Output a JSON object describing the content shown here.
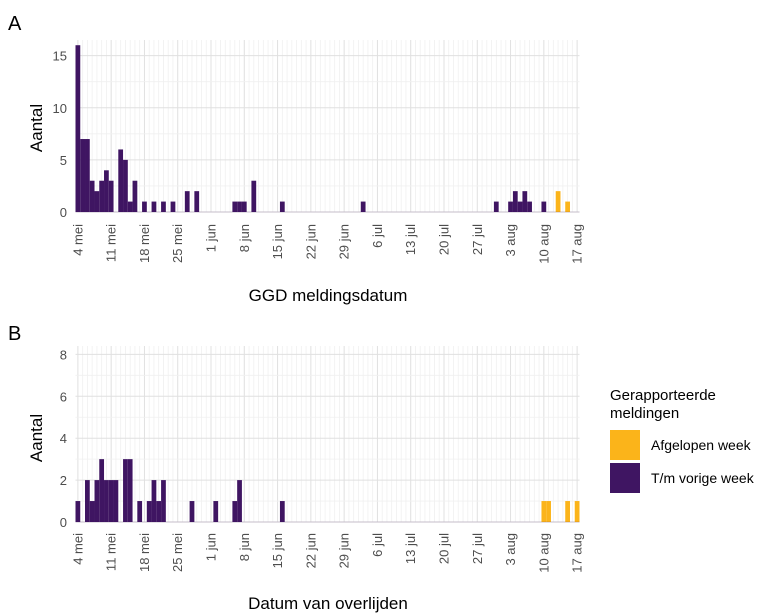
{
  "legend": {
    "title_lines": [
      "Gerapporteerde",
      "meldingen"
    ],
    "entries": [
      {
        "label": "Afgelopen week",
        "color": "#FBB41A"
      },
      {
        "label": "T/m vorige week",
        "color": "#3F1562"
      }
    ]
  },
  "chart_data": [
    {
      "type": "bar",
      "panel": "A",
      "xlabel": "GGD meldingsdatum",
      "ylabel": "Aantal",
      "x_start": "2020-05-04",
      "ylim": [
        0,
        16.5
      ],
      "yticks": [
        0,
        5,
        10,
        15
      ],
      "xtick_labels": [
        "4 mei",
        "11 mei",
        "18 mei",
        "25 mei",
        "1 jun",
        "8 jun",
        "15 jun",
        "22 jun",
        "29 jun",
        "6 jul",
        "13 jul",
        "20 jul",
        "27 jul",
        "3 aug",
        "10 aug",
        "17 aug"
      ],
      "series": [
        {
          "name": "T/m vorige week",
          "color": "#3F1562",
          "points": [
            {
              "x": "2020-05-04",
              "y": 16
            },
            {
              "x": "2020-05-05",
              "y": 7
            },
            {
              "x": "2020-05-06",
              "y": 7
            },
            {
              "x": "2020-05-07",
              "y": 3
            },
            {
              "x": "2020-05-08",
              "y": 2
            },
            {
              "x": "2020-05-09",
              "y": 3
            },
            {
              "x": "2020-05-10",
              "y": 4
            },
            {
              "x": "2020-05-11",
              "y": 3
            },
            {
              "x": "2020-05-13",
              "y": 6
            },
            {
              "x": "2020-05-14",
              "y": 5
            },
            {
              "x": "2020-05-15",
              "y": 1
            },
            {
              "x": "2020-05-16",
              "y": 3
            },
            {
              "x": "2020-05-18",
              "y": 1
            },
            {
              "x": "2020-05-20",
              "y": 1
            },
            {
              "x": "2020-05-22",
              "y": 1
            },
            {
              "x": "2020-05-24",
              "y": 1
            },
            {
              "x": "2020-05-27",
              "y": 2
            },
            {
              "x": "2020-05-29",
              "y": 2
            },
            {
              "x": "2020-06-06",
              "y": 1
            },
            {
              "x": "2020-06-07",
              "y": 1
            },
            {
              "x": "2020-06-08",
              "y": 1
            },
            {
              "x": "2020-06-10",
              "y": 3
            },
            {
              "x": "2020-06-16",
              "y": 1
            },
            {
              "x": "2020-07-03",
              "y": 1
            },
            {
              "x": "2020-07-31",
              "y": 1
            },
            {
              "x": "2020-08-03",
              "y": 1
            },
            {
              "x": "2020-08-04",
              "y": 2
            },
            {
              "x": "2020-08-05",
              "y": 1
            },
            {
              "x": "2020-08-06",
              "y": 2
            },
            {
              "x": "2020-08-07",
              "y": 1
            },
            {
              "x": "2020-08-10",
              "y": 1
            }
          ]
        },
        {
          "name": "Afgelopen week",
          "color": "#FBB41A",
          "points": [
            {
              "x": "2020-08-13",
              "y": 2
            },
            {
              "x": "2020-08-15",
              "y": 1
            }
          ]
        }
      ]
    },
    {
      "type": "bar",
      "panel": "B",
      "xlabel": "Datum van overlijden",
      "ylabel": "Aantal",
      "x_start": "2020-05-04",
      "ylim": [
        0,
        8.4
      ],
      "yticks": [
        0,
        2,
        4,
        6,
        8
      ],
      "xtick_labels": [
        "4 mei",
        "11 mei",
        "18 mei",
        "25 mei",
        "1 jun",
        "8 jun",
        "15 jun",
        "22 jun",
        "29 jun",
        "6 jul",
        "13 jul",
        "20 jul",
        "27 jul",
        "3 aug",
        "10 aug",
        "17 aug"
      ],
      "series": [
        {
          "name": "T/m vorige week",
          "color": "#3F1562",
          "points": [
            {
              "x": "2020-05-04",
              "y": 1
            },
            {
              "x": "2020-05-06",
              "y": 2
            },
            {
              "x": "2020-05-07",
              "y": 1
            },
            {
              "x": "2020-05-08",
              "y": 2
            },
            {
              "x": "2020-05-09",
              "y": 3
            },
            {
              "x": "2020-05-10",
              "y": 2
            },
            {
              "x": "2020-05-11",
              "y": 2
            },
            {
              "x": "2020-05-12",
              "y": 2
            },
            {
              "x": "2020-05-14",
              "y": 3
            },
            {
              "x": "2020-05-15",
              "y": 3
            },
            {
              "x": "2020-05-17",
              "y": 1
            },
            {
              "x": "2020-05-19",
              "y": 1
            },
            {
              "x": "2020-05-20",
              "y": 2
            },
            {
              "x": "2020-05-21",
              "y": 1
            },
            {
              "x": "2020-05-22",
              "y": 2
            },
            {
              "x": "2020-05-28",
              "y": 1
            },
            {
              "x": "2020-06-02",
              "y": 1
            },
            {
              "x": "2020-06-06",
              "y": 1
            },
            {
              "x": "2020-06-07",
              "y": 2
            },
            {
              "x": "2020-06-16",
              "y": 1
            }
          ]
        },
        {
          "name": "Afgelopen week",
          "color": "#FBB41A",
          "points": [
            {
              "x": "2020-08-10",
              "y": 1
            },
            {
              "x": "2020-08-11",
              "y": 1
            },
            {
              "x": "2020-08-15",
              "y": 1
            },
            {
              "x": "2020-08-17",
              "y": 1
            }
          ]
        }
      ]
    }
  ]
}
